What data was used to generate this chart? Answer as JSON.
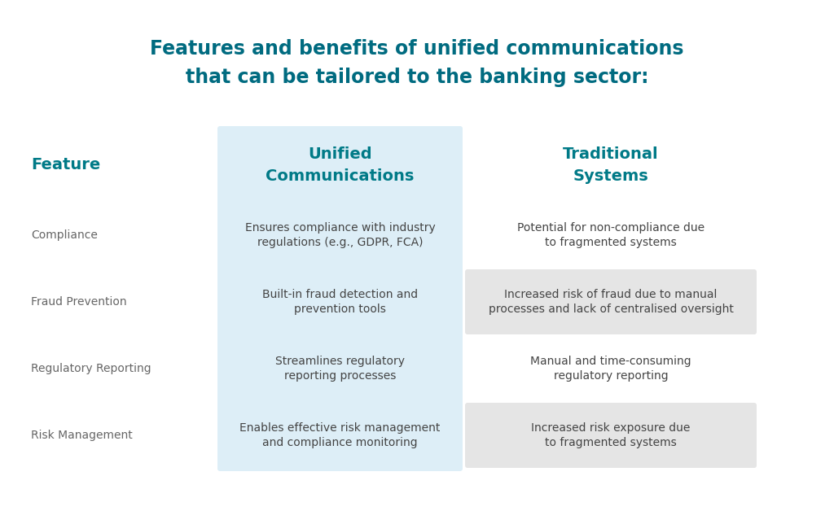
{
  "title_line1": "Features and benefits of unified communications",
  "title_line2": "that can be tailored to the banking sector:",
  "title_color": "#006b80",
  "background_color": "#ffffff",
  "col_headers": [
    "Feature",
    "Unified\nCommunications",
    "Traditional\nSystems"
  ],
  "col_header_color": "#007a87",
  "col1_bg": "#ddeef7",
  "col2_bg_alt": "#e5e5e5",
  "rows": [
    {
      "feature": "Compliance",
      "unified": "Ensures compliance with industry\nregulations (e.g., GDPR, FCA)",
      "traditional": "Potential for non-compliance due\nto fragmented systems",
      "alt": false
    },
    {
      "feature": "Fraud Prevention",
      "unified": "Built-in fraud detection and\nprevention tools",
      "traditional": "Increased risk of fraud due to manual\nprocesses and lack of centralised oversight",
      "alt": true
    },
    {
      "feature": "Regulatory Reporting",
      "unified": "Streamlines regulatory\nreporting processes",
      "traditional": "Manual and time-consuming\nregulatory reporting",
      "alt": false
    },
    {
      "feature": "Risk Management",
      "unified": "Enables effective risk management\nand compliance monitoring",
      "traditional": "Increased risk exposure due\nto fragmented systems",
      "alt": true
    }
  ],
  "feature_text_color": "#666666",
  "cell_text_color": "#444444",
  "figsize": [
    10.24,
    6.28
  ],
  "dpi": 100
}
